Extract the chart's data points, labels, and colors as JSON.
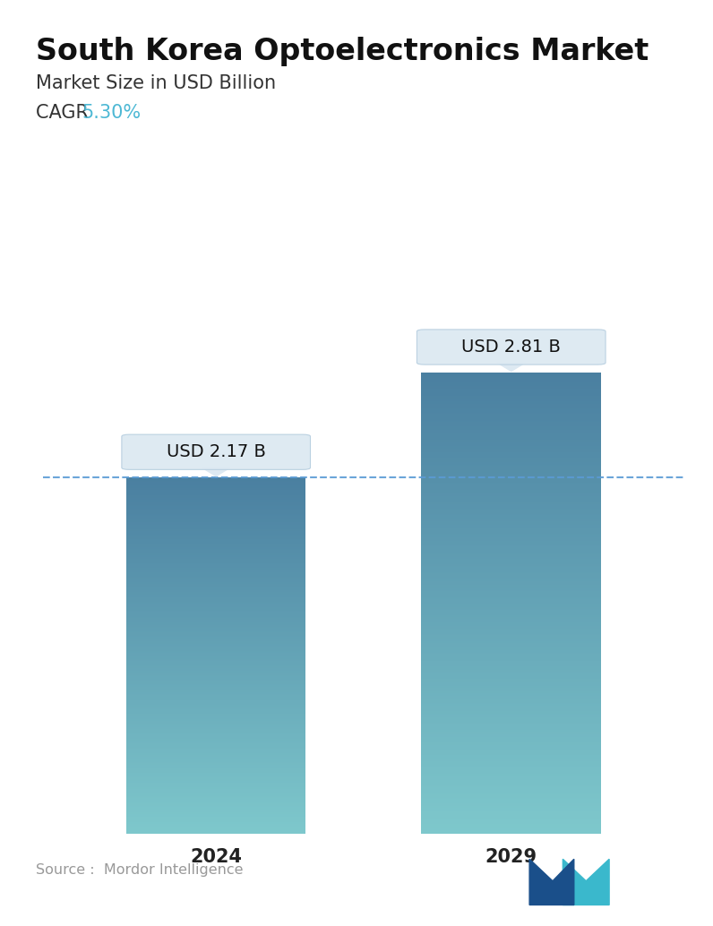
{
  "title": "South Korea Optoelectronics Market",
  "subtitle": "Market Size in USD Billion",
  "cagr_label": "CAGR",
  "cagr_value": "5.30%",
  "cagr_color": "#4db8d4",
  "categories": [
    "2024",
    "2029"
  ],
  "values": [
    2.17,
    2.81
  ],
  "bar_labels": [
    "USD 2.17 B",
    "USD 2.81 B"
  ],
  "bar_top_color": "#4a7fa0",
  "bar_bottom_color": "#7ec8cc",
  "dashed_line_color": "#5b9bd5",
  "source_text": "Source :  Mordor Intelligence",
  "source_color": "#999999",
  "background_color": "#ffffff",
  "title_fontsize": 24,
  "subtitle_fontsize": 15,
  "cagr_fontsize": 15,
  "xlabel_fontsize": 15,
  "annotation_fontsize": 14,
  "ylim": [
    0,
    3.5
  ],
  "bar_positions": [
    0.27,
    0.73
  ],
  "bar_width": 0.28
}
